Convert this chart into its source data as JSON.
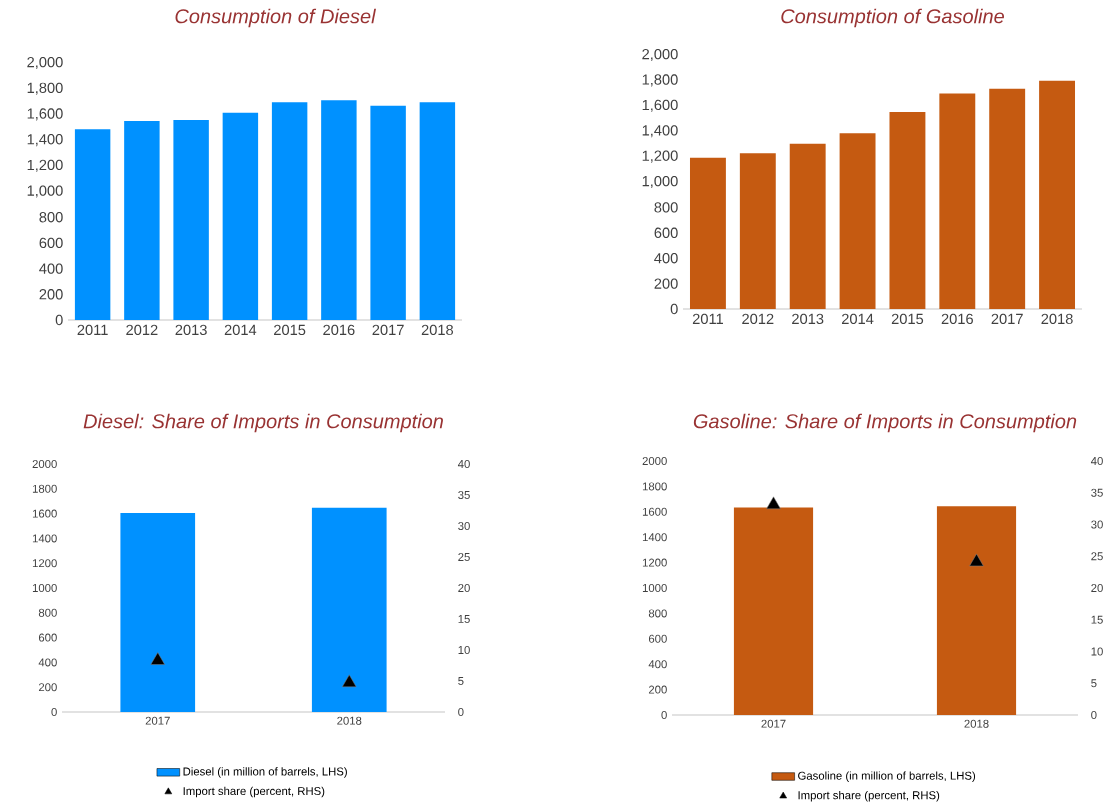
{
  "chart_data": [
    {
      "type": "bar",
      "title": "Consumption of Diesel",
      "categories": [
        "2011",
        "2012",
        "2013",
        "2014",
        "2015",
        "2016",
        "2017",
        "2018"
      ],
      "values": [
        1484,
        1549,
        1557,
        1612,
        1695,
        1711,
        1667,
        1695
      ],
      "color": "#0091ff",
      "ylim": [
        0,
        2000
      ],
      "yticks": [
        0,
        200,
        400,
        600,
        800,
        {
          "value": 1000,
          "label": "1,000"
        },
        {
          "value": 1200,
          "label": "1,200"
        },
        {
          "value": 1400,
          "label": "1,400"
        },
        {
          "value": 1600,
          "label": "1,600"
        },
        {
          "value": 1800,
          "label": "1,800"
        },
        {
          "value": 2000,
          "label": "2,000"
        }
      ]
    },
    {
      "type": "bar",
      "title": "Consumption of Gasoline",
      "categories": [
        "2011",
        "2012",
        "2013",
        "2014",
        "2015",
        "2016",
        "2017",
        "2018"
      ],
      "values": [
        1190,
        1227,
        1301,
        1383,
        1551,
        1697,
        1734,
        1797
      ],
      "color": "#c55a11",
      "ylim": [
        0,
        2000
      ],
      "yticks": [
        0,
        200,
        400,
        600,
        800,
        {
          "value": 1000,
          "label": "1,000"
        },
        {
          "value": 1200,
          "label": "1,200"
        },
        {
          "value": 1400,
          "label": "1,400"
        },
        {
          "value": 1600,
          "label": "1,600"
        },
        {
          "value": 1800,
          "label": "1,800"
        },
        {
          "value": 2000,
          "label": "2,000"
        }
      ]
    },
    {
      "type": "bar",
      "title": "Diesel: Share of Imports in Consumption",
      "categories": [
        "2017",
        "2018"
      ],
      "series": [
        {
          "name": "Diesel (in million of barrels, LHS)",
          "type": "bar",
          "color": "#0091ff",
          "values": [
            1604,
            1647
          ]
        },
        {
          "name": "Import share (percent, RHS)",
          "type": "scatter",
          "axis": "y2",
          "marker": "triangle",
          "color": "#000000",
          "values": [
            8.3,
            4.7
          ]
        }
      ],
      "ylim": [
        0,
        2000
      ],
      "yticks": [
        0,
        200,
        400,
        600,
        800,
        1000,
        1200,
        1400,
        1600,
        1800,
        2000
      ],
      "y2lim": [
        0,
        40
      ],
      "y2ticks": [
        0,
        5,
        10,
        15,
        20,
        25,
        30,
        35,
        40
      ],
      "legend": "bottom"
    },
    {
      "type": "bar",
      "title": "Gasoline: Share of Imports in Consumption",
      "categories": [
        "2017",
        "2018"
      ],
      "series": [
        {
          "name": "Gasoline (in million of barrels, LHS)",
          "type": "bar",
          "color": "#c55a11",
          "values": [
            1634,
            1644
          ]
        },
        {
          "name": "Import share (percent, RHS)",
          "type": "scatter",
          "axis": "y2",
          "marker": "triangle",
          "color": "#000000",
          "values": [
            33.1,
            24.1
          ]
        }
      ],
      "ylim": [
        0,
        2000
      ],
      "yticks": [
        0,
        200,
        400,
        600,
        800,
        1000,
        1200,
        1400,
        1600,
        1800,
        2000
      ],
      "y2lim": [
        0,
        40
      ],
      "y2ticks": [
        0,
        5,
        10,
        15,
        20,
        25,
        30,
        35,
        40
      ],
      "legend": "bottom"
    }
  ]
}
